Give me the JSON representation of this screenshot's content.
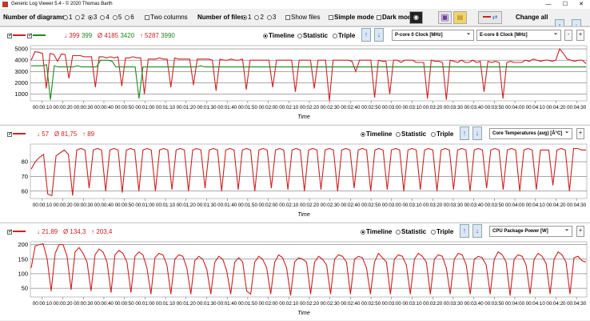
{
  "window": {
    "title": "Generic Log Viewer 5.4 - © 2020 Thomas Barth"
  },
  "toolbar": {
    "num_diagrams_label": "Number of diagrams",
    "diagram_options": [
      "1",
      "2",
      "3",
      "4",
      "5",
      "6"
    ],
    "diagram_selected": "3",
    "two_columns_label": "Two columns",
    "num_files_label": "Number of files",
    "file_options": [
      "1",
      "2",
      "3"
    ],
    "file_selected": "1",
    "show_files_label": "Show files",
    "simple_mode_label": "Simple mode",
    "dark_mode_label": "Dark mod",
    "change_all_label": "Change all"
  },
  "panels": [
    {
      "stats": {
        "min": "399",
        "min2": "399",
        "avg": "4185",
        "avg2": "3420",
        "max": "5287",
        "max2": "3990"
      },
      "timeline_label": "Timeline",
      "statistic_label": "Statistic",
      "triple_label": "Triple",
      "select1": "P-core 0 Clock [MHz]",
      "select2": "E-core 8 Clock [MHz]",
      "xlabel": "Time"
    },
    {
      "stats": {
        "min": "57",
        "avg": "81,75",
        "max": "89"
      },
      "timeline_label": "Timeline",
      "statistic_label": "Statistic",
      "triple_label": "Triple",
      "select1": "Core Temperatures (avg) [Â°C]",
      "xlabel": "Time"
    },
    {
      "stats": {
        "min": "21,89",
        "avg": "134,3",
        "max": "203,4"
      },
      "timeline_label": "Timeline",
      "statistic_label": "Statistic",
      "triple_label": "Triple",
      "select1": "CPU Package Power [W]",
      "xlabel": "Time"
    }
  ],
  "chart_data": [
    {
      "type": "line",
      "x_ticks": [
        "00:00:10",
        "00:00:20",
        "00:00:30",
        "00:00:40",
        "00:00:50",
        "00:01:00",
        "00:01:10",
        "00:01:20",
        "00:01:30",
        "00:01:40",
        "00:01:50",
        "00:02:00",
        "00:02:10",
        "00:02:20",
        "00:02:30",
        "00:02:40",
        "00:02:50",
        "00:03:00",
        "00:03:10",
        "00:03:20",
        "00:03:30",
        "00:03:40",
        "00:03:50",
        "00:04:00",
        "00:04:10",
        "00:04:20",
        "00:04:30"
      ],
      "y_ticks": [
        1000,
        2000,
        3000,
        4000,
        5000
      ],
      "ylim": [
        399,
        5287
      ],
      "xlabel": "Time",
      "series": [
        {
          "color": "#cc2222",
          "values": [
            4000,
            4750,
            4700,
            4600,
            1500,
            4600,
            4500,
            3900,
            4550,
            4500,
            2400,
            4400,
            4400,
            4400,
            4300,
            4300,
            4300,
            1600,
            4300,
            4300,
            4200,
            4300,
            4200,
            4300,
            1700,
            4200,
            4200,
            4300,
            4200,
            4200,
            1000,
            4100,
            4100,
            4100,
            4200,
            4100,
            4100,
            1600,
            4200,
            4100,
            4100,
            4100,
            4100,
            1800,
            4100,
            4100,
            4100,
            4100,
            4000,
            1300,
            4100,
            4000,
            4000,
            4100,
            4000,
            4000,
            4100,
            1400,
            4000,
            4000,
            4000,
            4000,
            4000,
            4000,
            1600,
            4000,
            4000,
            4000,
            4000,
            4000,
            1200,
            4000,
            4000,
            4000,
            4000,
            1500,
            4000,
            4000,
            4000,
            400,
            4000,
            4000,
            4000,
            4000,
            4000,
            3900,
            3000,
            4000,
            4000,
            4000,
            4000,
            700,
            4000,
            3900,
            3900,
            1000,
            4000,
            4000,
            3800,
            4000,
            4000,
            4000,
            3800,
            3800,
            3800,
            600,
            4000,
            3900,
            3900,
            3800,
            500,
            4000,
            3900,
            3800,
            4000,
            3800,
            3800,
            4000,
            3800,
            3900,
            1200,
            3900,
            3800,
            3900,
            3800,
            600,
            3800,
            3900,
            3800,
            3800,
            3800,
            4000,
            3900,
            4100,
            4000,
            3900,
            4000,
            4000,
            3900,
            4000,
            5000,
            4600,
            4100,
            4000,
            3900,
            4000,
            4000,
            3700
          ]
        },
        {
          "color": "#1e8a1e",
          "values": [
            3500,
            3500,
            3500,
            3500,
            3600,
            500,
            3500,
            3400,
            3400,
            3400,
            3400,
            3400,
            3500,
            3400,
            3400,
            3400,
            3400,
            3400,
            3990,
            3990,
            3990,
            3900,
            3400,
            3400,
            3400,
            3400,
            3400,
            3400,
            600,
            3400,
            3400,
            3400,
            3400,
            3400,
            3400,
            3400,
            3400,
            3400,
            3400,
            3400,
            3400,
            3400,
            3400,
            3400,
            3500,
            3400,
            3400,
            3400,
            3400,
            3400,
            3400,
            3400,
            3400,
            3400,
            3400,
            3400,
            3400,
            3400,
            3400,
            3400,
            3400,
            3400,
            3400,
            3400,
            3400,
            3400,
            3400,
            3400,
            3400,
            3400,
            3400,
            3400,
            3400,
            3400,
            3400,
            3400,
            3400,
            3400,
            3400,
            3400,
            3400,
            3400,
            3400,
            3400,
            3400,
            3400,
            3400,
            3400,
            3400,
            3400,
            3400,
            3400,
            3400,
            3400,
            3400,
            3400,
            3400,
            3400,
            3400,
            3400,
            3400,
            3400,
            3400,
            3400,
            3400,
            3400,
            3400,
            3400,
            3400,
            3400,
            3400,
            3400,
            3400,
            3400,
            3400,
            3400,
            3400,
            3400,
            3400,
            3400,
            3400,
            3400,
            3400,
            3400,
            3400,
            3400,
            3400,
            3400,
            3400,
            3400,
            3400,
            3400,
            3400,
            3400,
            3400,
            3400,
            3400,
            3400,
            3400,
            3400,
            3400,
            3400,
            3400,
            3400,
            3400
          ]
        }
      ]
    },
    {
      "type": "line",
      "x_ticks": [
        "00:00:10",
        "00:00:20",
        "00:00:30",
        "00:00:40",
        "00:00:50",
        "00:01:00",
        "00:01:10",
        "00:01:20",
        "00:01:30",
        "00:01:40",
        "00:01:50",
        "00:02:00",
        "00:02:10",
        "00:02:20",
        "00:02:30",
        "00:02:40",
        "00:02:50",
        "00:03:00",
        "00:03:10",
        "00:03:20",
        "00:03:30",
        "00:03:40",
        "00:03:50",
        "00:04:00",
        "00:04:10",
        "00:04:20",
        "00:04:30"
      ],
      "y_ticks": [
        60,
        70,
        80
      ],
      "ylim": [
        55,
        92
      ],
      "xlabel": "Time",
      "series": [
        {
          "color": "#cc2222",
          "values": [
            75,
            80,
            83,
            85,
            58,
            57,
            84,
            86,
            88,
            85,
            57,
            88,
            89,
            88,
            62,
            88,
            89,
            88,
            60,
            88,
            89,
            88,
            59,
            88,
            89,
            88,
            60,
            88,
            89,
            88,
            60,
            88,
            89,
            88,
            61,
            88,
            89,
            88,
            60,
            88,
            89,
            88,
            62,
            88,
            89,
            88,
            60,
            88,
            89,
            88,
            61,
            88,
            89,
            88,
            60,
            88,
            89,
            88,
            62,
            88,
            89,
            88,
            61,
            88,
            89,
            88,
            60,
            88,
            89,
            88,
            61,
            88,
            89,
            88,
            60,
            88,
            89,
            88,
            62,
            88,
            89,
            88,
            60,
            88,
            89,
            88,
            61,
            88,
            89,
            88,
            60,
            88,
            89,
            88,
            61,
            88,
            89,
            88,
            60,
            88,
            89,
            88,
            61,
            88,
            89,
            88,
            60,
            88,
            89,
            88,
            62,
            88,
            89,
            88,
            61,
            88,
            89,
            88,
            60,
            88,
            89,
            88,
            61,
            88,
            88,
            88,
            64,
            88,
            89,
            88,
            60,
            89,
            89,
            88,
            88
          ]
        }
      ]
    },
    {
      "type": "line",
      "x_ticks": [
        "00:00:10",
        "00:00:20",
        "00:00:30",
        "00:00:40",
        "00:00:50",
        "00:01:00",
        "00:01:10",
        "00:01:20",
        "00:01:30",
        "00:01:40",
        "00:01:50",
        "00:02:00",
        "00:02:10",
        "00:02:20",
        "00:02:30",
        "00:02:40",
        "00:02:50",
        "00:03:00",
        "00:03:10",
        "00:03:20",
        "00:03:30",
        "00:03:40",
        "00:03:50",
        "00:04:00",
        "00:04:10",
        "00:04:20",
        "00:04:30"
      ],
      "y_ticks": [
        50,
        100,
        150,
        200
      ],
      "ylim": [
        20,
        210
      ],
      "xlabel": "Time",
      "series": [
        {
          "color": "#cc2222",
          "values": [
            120,
            195,
            200,
            203,
            150,
            40,
            170,
            200,
            200,
            160,
            45,
            175,
            190,
            170,
            140,
            40,
            165,
            185,
            175,
            140,
            35,
            165,
            180,
            170,
            140,
            35,
            160,
            175,
            165,
            120,
            30,
            155,
            170,
            165,
            130,
            30,
            150,
            165,
            160,
            120,
            30,
            145,
            160,
            150,
            115,
            30,
            140,
            160,
            150,
            110,
            30,
            140,
            155,
            140,
            40,
            30,
            140,
            160,
            150,
            120,
            30,
            140,
            165,
            155,
            120,
            25,
            140,
            155,
            150,
            140,
            30,
            140,
            160,
            150,
            130,
            30,
            150,
            165,
            160,
            140,
            30,
            150,
            160,
            155,
            120,
            30,
            140,
            170,
            155,
            140,
            30,
            150,
            165,
            160,
            130,
            30,
            150,
            170,
            160,
            140,
            30,
            150,
            165,
            160,
            120,
            30,
            150,
            170,
            165,
            130,
            30,
            150,
            160,
            155,
            130,
            30,
            150,
            175,
            165,
            140,
            25,
            150,
            165,
            160,
            130,
            30,
            150,
            170,
            160,
            135,
            30,
            150,
            175,
            165,
            140,
            30,
            155,
            160,
            145,
            140
          ]
        }
      ]
    }
  ]
}
